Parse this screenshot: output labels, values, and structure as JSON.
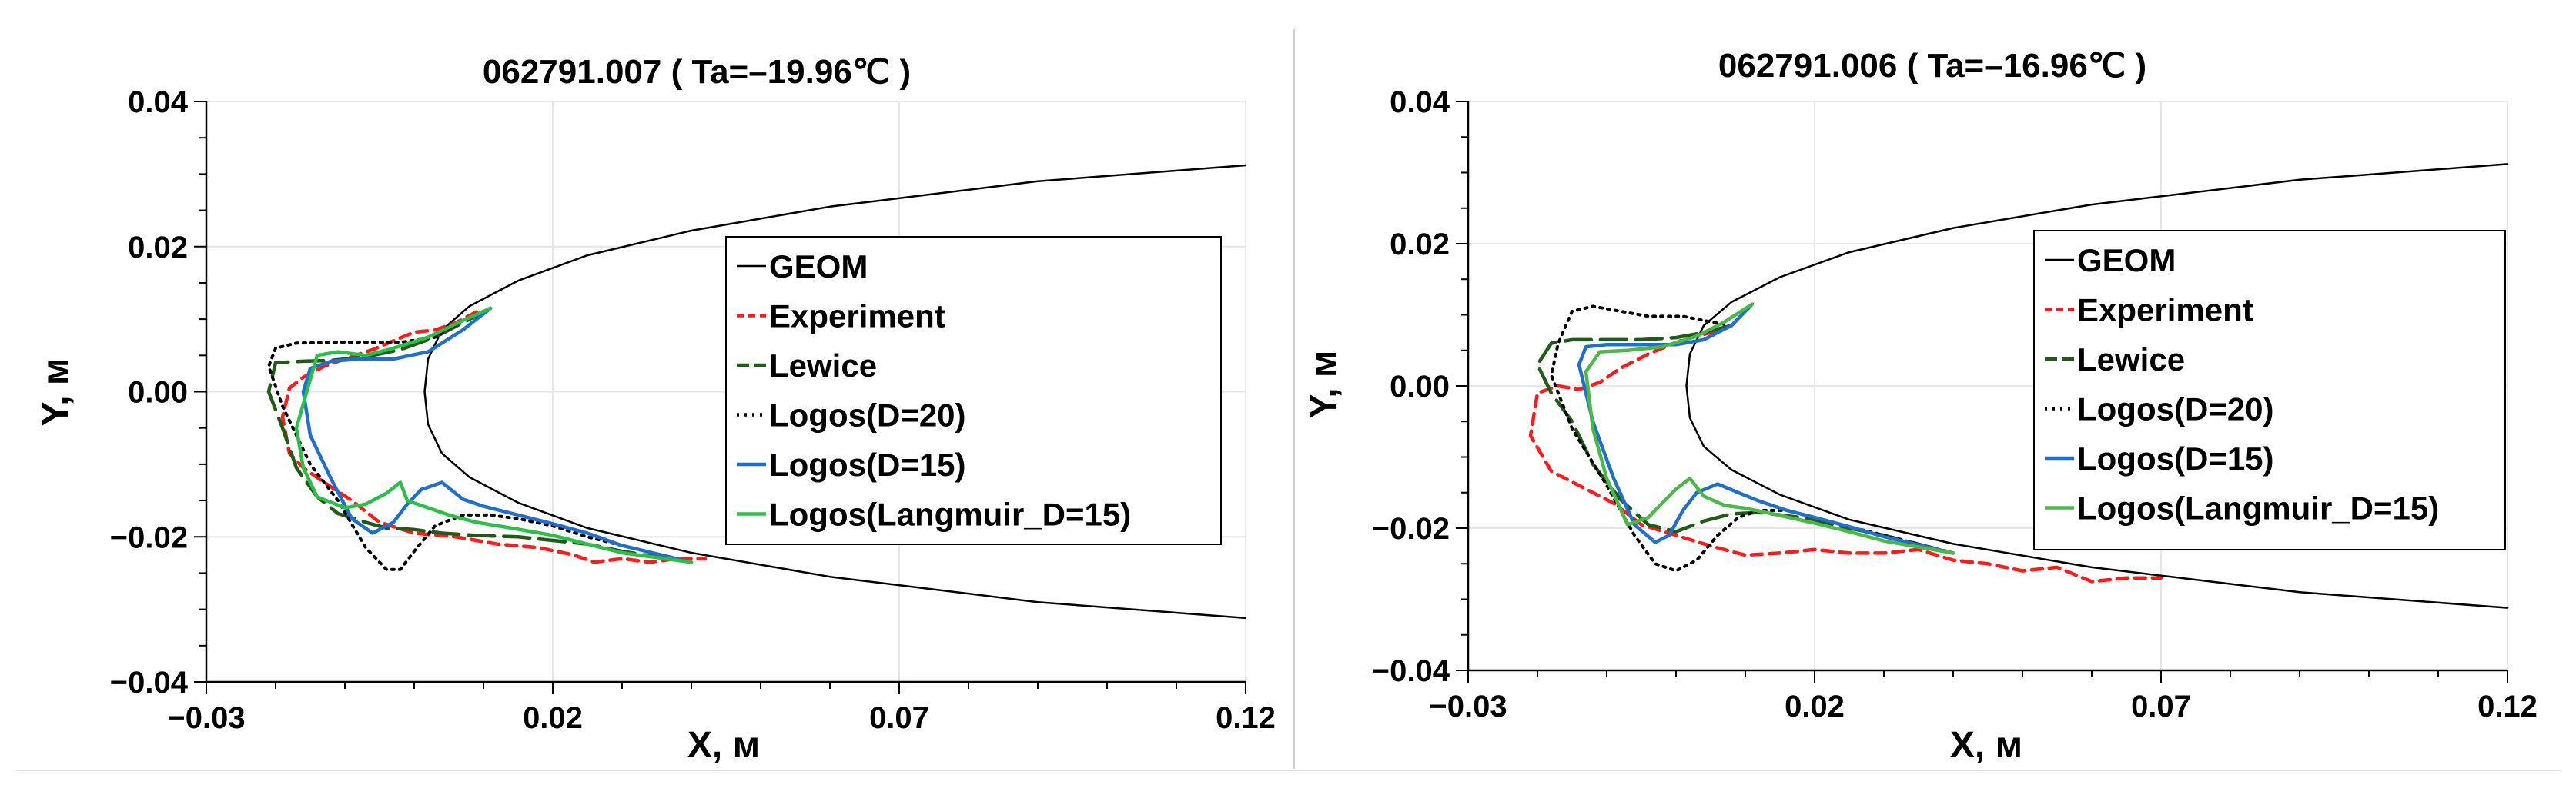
{
  "chart_data": [
    {
      "type": "line",
      "title": "062791.007 ( Ta=–19.96℃ )",
      "xlabel": "X, м",
      "ylabel": "Y, м",
      "xlim": [
        -0.03,
        0.12
      ],
      "ylim": [
        -0.04,
        0.04
      ],
      "x_ticks": [
        "−0.03",
        "0.02",
        "0.07",
        "0.12"
      ],
      "y_ticks": [
        "0.04",
        "0.02",
        "0.00",
        "−0.02",
        "−0.04"
      ],
      "legend_position": "center-right",
      "grid": true,
      "series": [
        {
          "name": "GEOM",
          "color": "#000000",
          "style": "solid",
          "x": [
            0.12,
            0.09,
            0.06,
            0.04,
            0.025,
            0.015,
            0.008,
            0.004,
            0.002,
            0.0015,
            0.002,
            0.004,
            0.008,
            0.015,
            0.025,
            0.04,
            0.06,
            0.09,
            0.12
          ],
          "y": [
            0.0312,
            0.029,
            0.0255,
            0.0222,
            0.0188,
            0.0153,
            0.0118,
            0.0085,
            0.0045,
            0.0,
            -0.0045,
            -0.0085,
            -0.0118,
            -0.0153,
            -0.0188,
            -0.0222,
            -0.0255,
            -0.029,
            -0.0312
          ]
        },
        {
          "name": "Experiment",
          "color": "#ff1a1a",
          "style": "dashed",
          "x": [
            0.009,
            0.006,
            0.003,
            0.0,
            -0.003,
            -0.006,
            -0.01,
            -0.013,
            -0.016,
            -0.018,
            -0.019,
            -0.018,
            -0.016,
            -0.013,
            -0.009,
            -0.005,
            0.0,
            0.006,
            0.012,
            0.018,
            0.023,
            0.026,
            0.03,
            0.034,
            0.038,
            0.042
          ],
          "y": [
            0.011,
            0.0095,
            0.0085,
            0.0082,
            0.007,
            0.0058,
            0.0045,
            0.0035,
            0.002,
            0.0005,
            -0.0035,
            -0.0085,
            -0.0105,
            -0.0125,
            -0.015,
            -0.018,
            -0.0195,
            -0.02,
            -0.021,
            -0.0215,
            -0.0225,
            -0.0235,
            -0.023,
            -0.0235,
            -0.023,
            -0.023
          ]
        },
        {
          "name": "Lewice",
          "color": "#1f5a17",
          "style": "longdash",
          "x": [
            0.011,
            0.007,
            0.003,
            -0.002,
            -0.007,
            -0.012,
            -0.016,
            -0.02,
            -0.021,
            -0.019,
            -0.017,
            -0.014,
            -0.011,
            -0.007,
            -0.004,
            0.0,
            0.004,
            0.009,
            0.015,
            0.02,
            0.025,
            0.03,
            0.04
          ],
          "y": [
            0.0115,
            0.0095,
            0.0075,
            0.0058,
            0.0048,
            0.0043,
            0.0042,
            0.004,
            0.0,
            -0.005,
            -0.0105,
            -0.0145,
            -0.0168,
            -0.018,
            -0.0188,
            -0.019,
            -0.0195,
            -0.0198,
            -0.02,
            -0.0205,
            -0.021,
            -0.022,
            -0.0235
          ]
        },
        {
          "name": "Logos(D=20)",
          "color": "#000000",
          "style": "dotted",
          "x": [
            0.011,
            0.007,
            0.003,
            -0.002,
            -0.007,
            -0.012,
            -0.017,
            -0.02,
            -0.021,
            -0.019,
            -0.015,
            -0.011,
            -0.007,
            -0.004,
            -0.002,
            0.0,
            0.003,
            0.007,
            0.011,
            0.015,
            0.02,
            0.025,
            0.03,
            0.04
          ],
          "y": [
            0.0115,
            0.0098,
            0.0075,
            0.0068,
            0.0068,
            0.0068,
            0.0067,
            0.006,
            0.0035,
            -0.002,
            -0.01,
            -0.015,
            -0.0215,
            -0.0245,
            -0.0245,
            -0.022,
            -0.0185,
            -0.017,
            -0.017,
            -0.0175,
            -0.0185,
            -0.02,
            -0.0212,
            -0.0235
          ]
        },
        {
          "name": "Logos(D=15)",
          "color": "#1f6fcf",
          "style": "solid",
          "x": [
            0.011,
            0.007,
            0.002,
            -0.003,
            -0.008,
            -0.012,
            -0.015,
            -0.016,
            -0.015,
            -0.012,
            -0.009,
            -0.006,
            -0.003,
            -0.001,
            0.001,
            0.004,
            0.007,
            0.01,
            0.015,
            0.02,
            0.025,
            0.03,
            0.04
          ],
          "y": [
            0.0115,
            0.0085,
            0.0055,
            0.0045,
            0.0045,
            0.0042,
            0.0032,
            0.0,
            -0.006,
            -0.012,
            -0.0175,
            -0.0195,
            -0.018,
            -0.0155,
            -0.0135,
            -0.0125,
            -0.0148,
            -0.0158,
            -0.017,
            -0.0182,
            -0.0195,
            -0.0212,
            -0.0235
          ]
        },
        {
          "name": "Logos(Langmuir_D=15)",
          "color": "#2bbf4a",
          "style": "solid",
          "x": [
            0.011,
            0.007,
            0.002,
            -0.003,
            -0.007,
            -0.011,
            -0.014,
            -0.017,
            -0.016,
            -0.014,
            -0.01,
            -0.007,
            -0.004,
            -0.002,
            -0.001,
            0.002,
            0.005,
            0.009,
            0.014,
            0.02,
            0.025,
            0.03,
            0.04
          ],
          "y": [
            0.0115,
            0.0098,
            0.0075,
            0.006,
            0.005,
            0.0055,
            0.005,
            -0.005,
            -0.0105,
            -0.0145,
            -0.016,
            -0.0155,
            -0.014,
            -0.0125,
            -0.015,
            -0.016,
            -0.017,
            -0.018,
            -0.0188,
            -0.0198,
            -0.021,
            -0.0222,
            -0.0235
          ]
        }
      ]
    },
    {
      "type": "line",
      "title": "062791.006 ( Ta=–16.96℃ )",
      "xlabel": "X, м",
      "ylabel": "Y, м",
      "xlim": [
        -0.03,
        0.12
      ],
      "ylim": [
        -0.04,
        0.04
      ],
      "x_ticks": [
        "−0.03",
        "0.02",
        "0.07",
        "0.12"
      ],
      "y_ticks": [
        "0.04",
        "0.02",
        "0.00",
        "−0.02",
        "−0.04"
      ],
      "legend_position": "center-right",
      "grid": true,
      "series": [
        {
          "name": "GEOM",
          "color": "#000000",
          "style": "solid",
          "x": [
            0.12,
            0.09,
            0.06,
            0.04,
            0.025,
            0.015,
            0.008,
            0.004,
            0.002,
            0.0015,
            0.002,
            0.004,
            0.008,
            0.015,
            0.025,
            0.04,
            0.06,
            0.09,
            0.12
          ],
          "y": [
            0.0312,
            0.029,
            0.0255,
            0.0222,
            0.0188,
            0.0153,
            0.0118,
            0.0085,
            0.0045,
            0.0,
            -0.0045,
            -0.0085,
            -0.0118,
            -0.0153,
            -0.0188,
            -0.0222,
            -0.0255,
            -0.029,
            -0.0312
          ]
        },
        {
          "name": "Experiment",
          "color": "#ff1a1a",
          "style": "dashed",
          "x": [
            0.008,
            0.005,
            0.001,
            -0.004,
            -0.008,
            -0.011,
            -0.014,
            -0.017,
            -0.02,
            -0.021,
            -0.018,
            -0.013,
            -0.009,
            -0.005,
            0.0,
            0.005,
            0.01,
            0.015,
            0.02,
            0.025,
            0.03,
            0.035,
            0.04,
            0.045,
            0.05,
            0.055,
            0.06,
            0.065,
            0.07
          ],
          "y": [
            0.0085,
            0.0075,
            0.0065,
            0.0045,
            0.0025,
            0.0005,
            -0.0005,
            0.0,
            -0.001,
            -0.007,
            -0.012,
            -0.0145,
            -0.0165,
            -0.0195,
            -0.021,
            -0.0225,
            -0.0238,
            -0.0235,
            -0.023,
            -0.0235,
            -0.0235,
            -0.023,
            -0.0245,
            -0.025,
            -0.026,
            -0.0255,
            -0.0275,
            -0.027,
            -0.027
          ]
        },
        {
          "name": "Lewice",
          "color": "#1f5a17",
          "style": "longdash",
          "x": [
            0.008,
            0.004,
            0.0,
            -0.005,
            -0.01,
            -0.015,
            -0.018,
            -0.02,
            -0.018,
            -0.015,
            -0.012,
            -0.008,
            -0.004,
            0.0,
            0.004,
            0.008,
            0.012,
            0.018,
            0.025,
            0.03,
            0.04
          ],
          "y": [
            0.0085,
            0.0075,
            0.0068,
            0.0065,
            0.0065,
            0.0065,
            0.006,
            0.003,
            -0.001,
            -0.005,
            -0.011,
            -0.016,
            -0.0195,
            -0.0205,
            -0.019,
            -0.018,
            -0.0178,
            -0.0185,
            -0.02,
            -0.021,
            -0.0235
          ]
        },
        {
          "name": "Logos(D=20)",
          "color": "#000000",
          "style": "dotted",
          "x": [
            0.008,
            0.005,
            0.001,
            -0.004,
            -0.008,
            -0.012,
            -0.015,
            -0.017,
            -0.018,
            -0.015,
            -0.01,
            -0.006,
            -0.003,
            0.0,
            0.003,
            0.006,
            0.009,
            0.012,
            0.016,
            0.02,
            0.025,
            0.03,
            0.04
          ],
          "y": [
            0.0085,
            0.009,
            0.0098,
            0.0098,
            0.0105,
            0.0112,
            0.0105,
            0.006,
            0.0015,
            -0.006,
            -0.014,
            -0.021,
            -0.025,
            -0.026,
            -0.0245,
            -0.021,
            -0.0185,
            -0.0175,
            -0.0175,
            -0.0185,
            -0.0198,
            -0.021,
            -0.0235
          ]
        },
        {
          "name": "Logos(D=15)",
          "color": "#1f6fcf",
          "style": "solid",
          "x": [
            0.011,
            0.008,
            0.004,
            0.0,
            -0.005,
            -0.01,
            -0.013,
            -0.014,
            -0.012,
            -0.009,
            -0.006,
            -0.003,
            -0.001,
            0.001,
            0.003,
            0.006,
            0.009,
            0.012,
            0.016,
            0.02,
            0.025,
            0.03,
            0.04
          ],
          "y": [
            0.0115,
            0.0085,
            0.0065,
            0.0058,
            0.0058,
            0.0058,
            0.0055,
            0.003,
            -0.005,
            -0.013,
            -0.0195,
            -0.022,
            -0.021,
            -0.0175,
            -0.015,
            -0.0138,
            -0.015,
            -0.0162,
            -0.0175,
            -0.0185,
            -0.0198,
            -0.0212,
            -0.0235
          ]
        },
        {
          "name": "Logos(Langmuir_D=15)",
          "color": "#4cb847",
          "style": "solid",
          "x": [
            0.011,
            0.007,
            0.003,
            -0.002,
            -0.007,
            -0.011,
            -0.013,
            -0.012,
            -0.01,
            -0.007,
            -0.004,
            -0.002,
            0.0,
            0.002,
            0.004,
            0.007,
            0.01,
            0.014,
            0.02,
            0.025,
            0.03,
            0.04
          ],
          "y": [
            0.0115,
            0.009,
            0.007,
            0.0055,
            0.005,
            0.0048,
            0.002,
            -0.006,
            -0.013,
            -0.0195,
            -0.0185,
            -0.0165,
            -0.0145,
            -0.013,
            -0.0155,
            -0.0168,
            -0.0172,
            -0.018,
            -0.0193,
            -0.0205,
            -0.0218,
            -0.0235
          ]
        }
      ]
    }
  ]
}
